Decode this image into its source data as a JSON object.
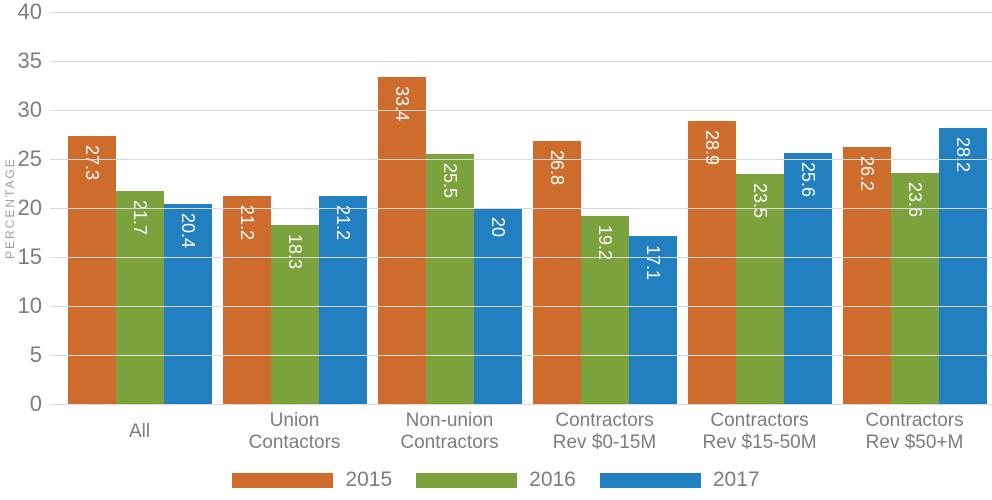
{
  "chart_data": {
    "type": "bar",
    "title": "",
    "xlabel": "",
    "ylabel": "PERCENTAGE",
    "ylim": [
      0,
      40
    ],
    "ytick_step": 5,
    "grid": true,
    "legend_position": "bottom",
    "categories": [
      "All",
      "Union\nContactors",
      "Non-union\nContractors",
      "Contractors\nRev $0-15M",
      "Contractors\nRev $15-50M",
      "Contractors\nRev $50+M"
    ],
    "series": [
      {
        "name": "2015",
        "color": "#CE6C2E",
        "values": [
          27.3,
          21.2,
          33.4,
          26.8,
          28.9,
          26.2
        ]
      },
      {
        "name": "2016",
        "color": "#7CA23D",
        "values": [
          21.7,
          18.3,
          25.5,
          19.2,
          23.5,
          23.6
        ]
      },
      {
        "name": "2017",
        "color": "#2280C0",
        "values": [
          20.4,
          21.2,
          20,
          17.1,
          25.6,
          28.2
        ]
      }
    ],
    "colors": {
      "gridline": "#d9d9d9",
      "axis_text": "#7d7d7d",
      "value_label_text": "#ffffff",
      "y_axis_title_text": "#9e9e9e"
    }
  }
}
